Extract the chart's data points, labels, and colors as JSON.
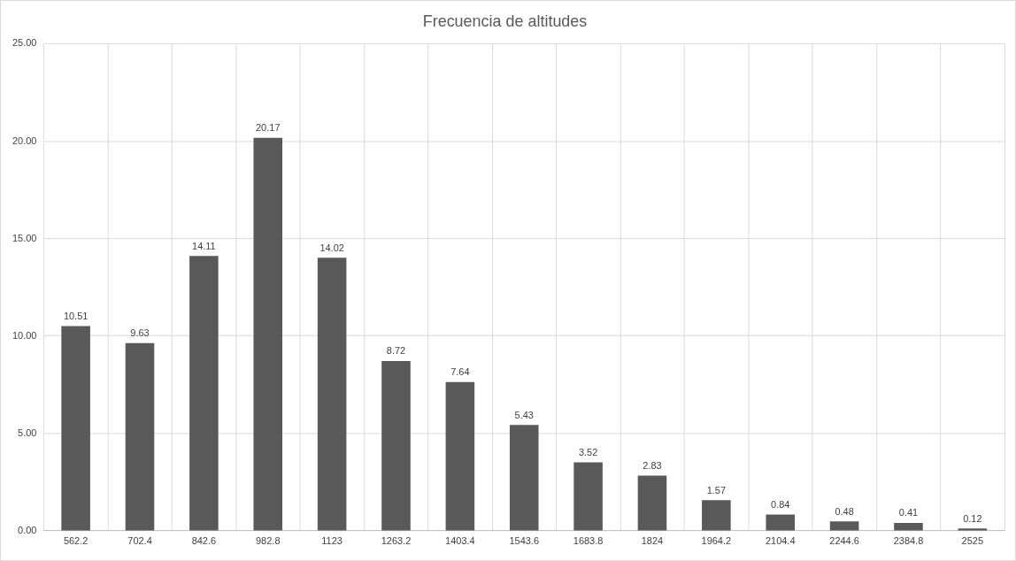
{
  "chart_data": {
    "type": "bar",
    "title": "Frecuencia de altitudes",
    "categories": [
      "562.2",
      "702.4",
      "842.6",
      "982.8",
      "1123",
      "1263.2",
      "1403.4",
      "1543.6",
      "1683.8",
      "1824",
      "1964.2",
      "2104.4",
      "2244.6",
      "2384.8",
      "2525"
    ],
    "values": [
      10.51,
      9.63,
      14.11,
      20.17,
      14.02,
      8.72,
      7.64,
      5.43,
      3.52,
      2.83,
      1.57,
      0.84,
      0.48,
      0.41,
      0.12
    ],
    "color": "#595959",
    "ylim": [
      0,
      25
    ],
    "yticks": [
      {
        "value": 0,
        "label": "0.00"
      },
      {
        "value": 5,
        "label": "5.00"
      },
      {
        "value": 10,
        "label": "10.00"
      },
      {
        "value": 15,
        "label": "15.00"
      },
      {
        "value": 20,
        "label": "20.00"
      },
      {
        "value": 25,
        "label": "25.00"
      }
    ],
    "grid": true,
    "data_labels": true
  }
}
